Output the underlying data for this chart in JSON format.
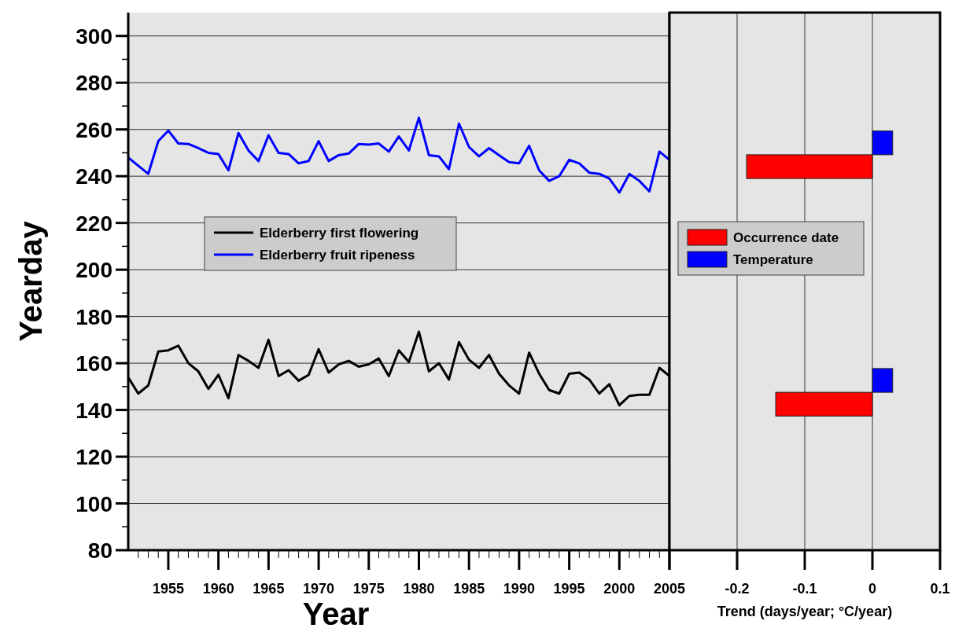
{
  "chart_data": [
    {
      "type": "line",
      "xlabel": "Year",
      "ylabel": "Yearday",
      "x": [
        1951,
        1952,
        1953,
        1954,
        1955,
        1956,
        1957,
        1958,
        1959,
        1960,
        1961,
        1962,
        1963,
        1964,
        1965,
        1966,
        1967,
        1968,
        1969,
        1970,
        1971,
        1972,
        1973,
        1974,
        1975,
        1976,
        1977,
        1978,
        1979,
        1980,
        1981,
        1982,
        1983,
        1984,
        1985,
        1986,
        1987,
        1988,
        1989,
        1990,
        1991,
        1992,
        1993,
        1994,
        1995,
        1996,
        1997,
        1998,
        1999,
        2000,
        2001,
        2002,
        2003,
        2004,
        2005
      ],
      "series": [
        {
          "name": "Elderberry first flowering",
          "color": "#000000",
          "values": [
            154,
            147,
            150.5,
            165,
            165.5,
            167.5,
            160,
            156.5,
            149,
            155,
            145,
            163.5,
            161,
            158,
            170,
            154.5,
            157,
            152.5,
            155,
            166,
            156,
            159.5,
            161,
            158.5,
            159.5,
            162,
            154.5,
            165.5,
            160.5,
            173.5,
            156.5,
            160,
            153,
            169,
            161.5,
            158,
            163.5,
            155.5,
            150.5,
            147,
            164.5,
            155.5,
            148.5,
            147,
            155.5,
            156,
            153,
            147,
            151,
            142,
            146,
            146.5,
            146.5,
            158,
            154.5
          ]
        },
        {
          "name": "Elderberry fruit ripeness",
          "color": "#0000ff",
          "values": [
            248,
            244.5,
            241,
            255,
            259.5,
            254,
            253.8,
            252,
            250,
            249.5,
            242.5,
            258.5,
            251,
            246.5,
            257.5,
            250,
            249.5,
            245.5,
            246.5,
            255,
            246.5,
            249,
            249.7,
            253.8,
            253.5,
            254,
            250.5,
            257,
            251,
            265,
            249,
            248.5,
            243,
            262.5,
            252.5,
            248.5,
            252,
            249,
            246,
            245.5,
            253,
            242.5,
            238,
            240,
            247,
            245.5,
            241.5,
            241,
            239,
            233,
            241,
            238,
            233.5,
            250.5,
            247
          ]
        }
      ],
      "xlim": [
        1951,
        2005
      ],
      "xticks": [
        {
          "value": 1952,
          "label": null
        },
        {
          "value": 1953,
          "label": null
        },
        {
          "value": 1954,
          "label": null
        },
        1955,
        {
          "value": 1956,
          "label": null
        },
        {
          "value": 1957,
          "label": null
        },
        {
          "value": 1958,
          "label": null
        },
        {
          "value": 1959,
          "label": null
        },
        1960,
        {
          "value": 1961,
          "label": null
        },
        {
          "value": 1962,
          "label": null
        },
        {
          "value": 1963,
          "label": null
        },
        {
          "value": 1964,
          "label": null
        },
        1965,
        {
          "value": 1966,
          "label": null
        },
        {
          "value": 1967,
          "label": null
        },
        {
          "value": 1968,
          "label": null
        },
        {
          "value": 1969,
          "label": null
        },
        1970,
        {
          "value": 1971,
          "label": null
        },
        {
          "value": 1972,
          "label": null
        },
        {
          "value": 1973,
          "label": null
        },
        {
          "value": 1974,
          "label": null
        },
        1975,
        {
          "value": 1976,
          "label": null
        },
        {
          "value": 1977,
          "label": null
        },
        {
          "value": 1978,
          "label": null
        },
        {
          "value": 1979,
          "label": null
        },
        1980,
        {
          "value": 1981,
          "label": null
        },
        {
          "value": 1982,
          "label": null
        },
        {
          "value": 1983,
          "label": null
        },
        {
          "value": 1984,
          "label": null
        },
        1985,
        {
          "value": 1986,
          "label": null
        },
        {
          "value": 1987,
          "label": null
        },
        {
          "value": 1988,
          "label": null
        },
        {
          "value": 1989,
          "label": null
        },
        1990,
        {
          "value": 1991,
          "label": null
        },
        {
          "value": 1992,
          "label": null
        },
        {
          "value": 1993,
          "label": null
        },
        {
          "value": 1994,
          "label": null
        },
        1995,
        {
          "value": 1996,
          "label": null
        },
        {
          "value": 1997,
          "label": null
        },
        {
          "value": 1998,
          "label": null
        },
        {
          "value": 1999,
          "label": null
        },
        2000,
        {
          "value": 2001,
          "label": null
        },
        {
          "value": 2002,
          "label": null
        },
        {
          "value": 2003,
          "label": null
        },
        {
          "value": 2004,
          "label": null
        },
        2005
      ],
      "ylim": [
        80,
        310
      ],
      "yticks": [
        80,
        {
          "value": 90,
          "label": null
        },
        100,
        {
          "value": 110,
          "label": null
        },
        120,
        {
          "value": 130,
          "label": null
        },
        140,
        {
          "value": 150,
          "label": null
        },
        160,
        {
          "value": 170,
          "label": null
        },
        180,
        {
          "value": 190,
          "label": null
        },
        200,
        {
          "value": 210,
          "label": null
        },
        220,
        {
          "value": 230,
          "label": null
        },
        240,
        {
          "value": 250,
          "label": null
        },
        260,
        {
          "value": 270,
          "label": null
        },
        280,
        {
          "value": 290,
          "label": null
        },
        300
      ],
      "grid": "y",
      "legend": "left",
      "marker": "none",
      "line_style": "solid"
    },
    {
      "type": "bar",
      "orientation": "horizontal",
      "xlabel": "Trend (days/year; °C/year)",
      "categories": [
        null,
        null
      ],
      "series": [
        {
          "name": "Occurrence date",
          "color": "#ff0000",
          "values": [
            -0.186,
            -0.143
          ]
        },
        {
          "name": "Temperature",
          "color": "#0000ff",
          "values": [
            0.03,
            0.03
          ]
        }
      ],
      "xlim": [
        -0.3,
        0.1
      ],
      "xticks": [
        -0.2,
        -0.1,
        0,
        0.1
      ],
      "grid": "x",
      "legend": "center"
    }
  ]
}
